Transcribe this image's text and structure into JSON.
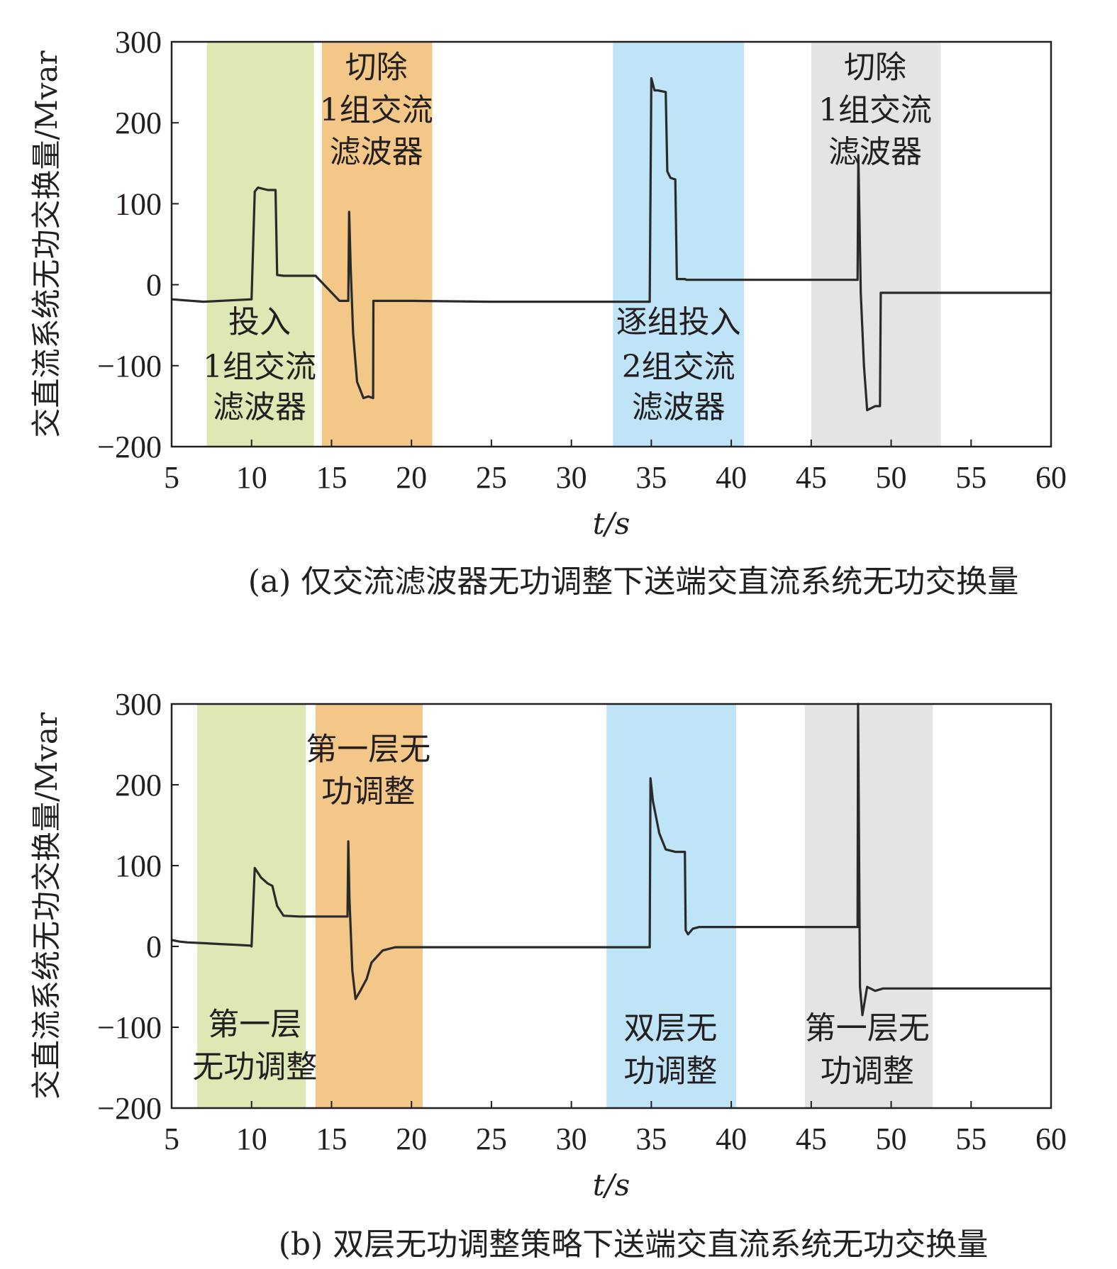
{
  "chart_data": [
    {
      "type": "line",
      "caption": "(a) 仅交流滤波器无功调整下送端交直流系统无功交换量",
      "xlabel": "t/s",
      "ylabel": "交直流系统无功交换量/Mvar",
      "xlim": [
        5,
        60
      ],
      "ylim": [
        -200,
        300
      ],
      "xticks": [
        5,
        10,
        15,
        20,
        25,
        30,
        35,
        40,
        45,
        50,
        55,
        60
      ],
      "yticks": [
        -200,
        -100,
        0,
        100,
        200,
        300
      ],
      "grid": false,
      "regions": [
        {
          "start": 7.2,
          "end": 13.9,
          "color": "#dde8b4",
          "label_lines": [
            "投入",
            "1组交流",
            "滤波器"
          ],
          "label_x": 10.5,
          "label_y": [
            -45,
            -100,
            -150
          ]
        },
        {
          "start": 14.4,
          "end": 21.3,
          "color": "#f2c787",
          "label_lines": [
            "切除",
            "1组交流",
            "滤波器"
          ],
          "label_x": 17.8,
          "label_y": [
            270,
            217,
            165
          ]
        },
        {
          "start": 32.6,
          "end": 40.8,
          "color": "#bfe3f7",
          "label_lines": [
            "逐组投入",
            "2组交流",
            "滤波器"
          ],
          "label_x": 36.7,
          "label_y": [
            -45,
            -100,
            -150
          ]
        },
        {
          "start": 45.0,
          "end": 53.1,
          "color": "#e4e4e4",
          "label_lines": [
            "切除",
            "1组交流",
            "滤波器"
          ],
          "label_x": 49.0,
          "label_y": [
            270,
            217,
            165
          ]
        }
      ],
      "series": [
        {
          "color": "#2a2a2a",
          "x": [
            5,
            7,
            10,
            10.2,
            10.4,
            11,
            11.5,
            11.6,
            12,
            14,
            15.5,
            16.05,
            16.1,
            16.2,
            16.35,
            16.6,
            17,
            17.3,
            17.6,
            17.62,
            18,
            20,
            25,
            30,
            34.9,
            35,
            35.2,
            35.4,
            35.9,
            36.0,
            36.2,
            36.5,
            36.6,
            37.1,
            37.2,
            38,
            40,
            45,
            47.9,
            47.95,
            48.1,
            48.3,
            48.5,
            49.0,
            49.3,
            49.35,
            49.6,
            52,
            55,
            60
          ],
          "y": [
            -18,
            -21,
            -18,
            115,
            120,
            117,
            117,
            12,
            11,
            11,
            -20,
            -20,
            90,
            20,
            -60,
            -120,
            -140,
            -138,
            -140,
            -20,
            -20,
            -20,
            -21,
            -21,
            -21,
            255,
            240,
            240,
            238,
            140,
            132,
            130,
            7,
            7,
            6,
            6,
            6,
            6,
            6,
            160,
            -10,
            -100,
            -155,
            -150,
            -150,
            -10,
            -10,
            -10,
            -10,
            -10
          ]
        }
      ]
    },
    {
      "type": "line",
      "caption": "(b) 双层无功调整策略下送端交直流系统无功交换量",
      "xlabel": "t/s",
      "ylabel": "交直流系统无功交换量/Mvar",
      "xlim": [
        5,
        60
      ],
      "ylim": [
        -200,
        300
      ],
      "xticks": [
        5,
        10,
        15,
        20,
        25,
        30,
        35,
        40,
        45,
        50,
        55,
        60
      ],
      "yticks": [
        -200,
        -100,
        0,
        100,
        200,
        300
      ],
      "grid": false,
      "regions": [
        {
          "start": 6.6,
          "end": 13.4,
          "color": "#dde8b4",
          "label_lines": [
            "第一层",
            "无功调整"
          ],
          "label_x": 10.2,
          "label_y": [
            -95,
            -148
          ]
        },
        {
          "start": 14.0,
          "end": 20.7,
          "color": "#f2c787",
          "label_lines": [
            "第一层无",
            "功调整"
          ],
          "label_x": 17.3,
          "label_y": [
            245,
            193
          ]
        },
        {
          "start": 32.2,
          "end": 40.3,
          "color": "#bfe3f7",
          "label_lines": [
            "双层无",
            "功调整"
          ],
          "label_x": 36.2,
          "label_y": [
            -100,
            -153
          ]
        },
        {
          "start": 44.6,
          "end": 52.6,
          "color": "#e4e4e4",
          "label_lines": [
            "第一层无",
            "功调整"
          ],
          "label_x": 48.5,
          "label_y": [
            -100,
            -153
          ]
        }
      ],
      "series": [
        {
          "color": "#2a2a2a",
          "x": [
            5,
            5.5,
            6,
            7,
            8,
            9,
            9.95,
            10.0,
            10.2,
            10.6,
            11.0,
            11.3,
            11.6,
            12,
            13,
            16.0,
            16.05,
            16.12,
            16.3,
            16.5,
            16.8,
            17.2,
            17.5,
            18.2,
            19,
            20,
            22,
            25,
            30,
            34.9,
            34.95,
            35.1,
            35.5,
            35.9,
            36.5,
            37.1,
            37.15,
            37.3,
            37.6,
            38,
            40,
            45,
            47.9,
            47.93,
            48.05,
            48.2,
            48.5,
            49,
            49.5,
            50,
            52,
            55,
            60
          ],
          "y": [
            8,
            6,
            5,
            4,
            3,
            2,
            1,
            0,
            97,
            85,
            78,
            75,
            50,
            38,
            37,
            37,
            130,
            60,
            -30,
            -65,
            -55,
            -40,
            -20,
            -5,
            -1,
            -1,
            -1,
            -1,
            -1,
            -1,
            208,
            180,
            140,
            120,
            117,
            117,
            20,
            15,
            22,
            24,
            24,
            24,
            24,
            300,
            -50,
            -85,
            -50,
            -55,
            -52,
            -52,
            -52,
            -52,
            -52
          ]
        }
      ]
    }
  ]
}
